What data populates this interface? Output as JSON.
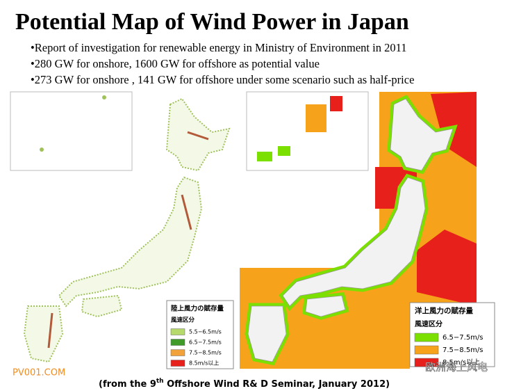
{
  "header": {
    "title": "Potential Map of Wind Power in Japan",
    "bullets": [
      "•Report of  investigation for renewable energy in Ministry of Environment in 2011",
      "•280 GW for onshore, 1600 GW for offshore as potential value",
      "•273 GW for onshore , 141 GW for offshore under some scenario such as half-price"
    ]
  },
  "onshore_legend": {
    "title": "陸上風力の賦存量",
    "subtitle": "風速区分",
    "items": [
      {
        "label": "5.5−6.5m/s",
        "color": "#b5d96a"
      },
      {
        "label": "6.5−7.5m/s",
        "color": "#3f9a2a"
      },
      {
        "label": "7.5−8.5m/s",
        "color": "#f2a23a"
      },
      {
        "label": "8.5m/s以上",
        "color": "#e8201c"
      }
    ]
  },
  "offshore_legend": {
    "title": "洋上風力の賦存量",
    "subtitle": "風速区分",
    "items": [
      {
        "label": "6.5−7.5m/s",
        "color": "#7be000"
      },
      {
        "label": "7.5−8.5m/s",
        "color": "#f7a21b"
      },
      {
        "label": "8.5m/s以上",
        "color": "#e8201c"
      }
    ]
  },
  "watermarks": [
    "PV001.COM",
    "欧洲海上风电"
  ],
  "caption": {
    "before": "(from the 9",
    "superscript": "th",
    "after": " Offshore Wind R& D Seminar, January 2012)"
  }
}
